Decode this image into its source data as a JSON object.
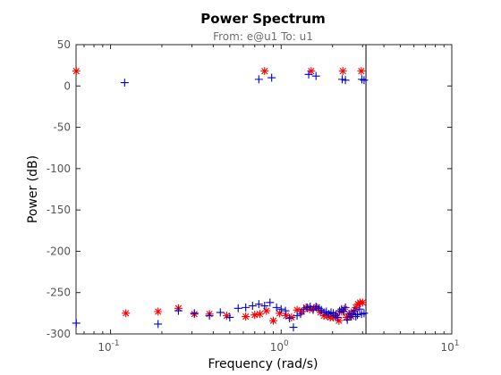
{
  "chart_data": {
    "type": "scatter",
    "title": "Power Spectrum",
    "subtitle": "From: e@u1  To: u1",
    "xlabel": "Frequency  (rad/s)",
    "ylabel": "Power (dB)",
    "xscale": "log",
    "xlim": [
      0.0628,
      10
    ],
    "ylim": [
      -300,
      50
    ],
    "xticks": [
      {
        "value": 0.1,
        "base": "10",
        "exp": "-1"
      },
      {
        "value": 1,
        "base": "10",
        "exp": "0"
      },
      {
        "value": 10,
        "base": "10",
        "exp": "1"
      }
    ],
    "yticks": [
      {
        "value": 50,
        "label": "50"
      },
      {
        "value": 0,
        "label": "0"
      },
      {
        "value": -50,
        "label": "-50"
      },
      {
        "value": -100,
        "label": "-100"
      },
      {
        "value": -150,
        "label": "-150"
      },
      {
        "value": -200,
        "label": "-200"
      },
      {
        "value": -250,
        "label": "-250"
      },
      {
        "value": -300,
        "label": "-300"
      }
    ],
    "grid": false,
    "vline_x": 3.14,
    "series": [
      {
        "marker": "asterisk",
        "color": "#ff0000",
        "points": [
          [
            0.063,
            18
          ],
          [
            0.8,
            18
          ],
          [
            1.5,
            18
          ],
          [
            2.3,
            18
          ],
          [
            2.95,
            18
          ],
          [
            0.123,
            -275
          ],
          [
            0.19,
            -273
          ],
          [
            0.25,
            -269
          ],
          [
            0.31,
            -276
          ],
          [
            0.38,
            -276
          ],
          [
            0.48,
            -278
          ],
          [
            0.62,
            -279
          ],
          [
            0.7,
            -277
          ],
          [
            0.75,
            -276
          ],
          [
            0.82,
            -272
          ],
          [
            0.9,
            -284
          ],
          [
            0.98,
            -275
          ],
          [
            1.07,
            -278
          ],
          [
            1.15,
            -280
          ],
          [
            1.24,
            -271
          ],
          [
            1.32,
            -273
          ],
          [
            1.4,
            -268
          ],
          [
            1.47,
            -270
          ],
          [
            1.55,
            -269
          ],
          [
            1.62,
            -268
          ],
          [
            1.7,
            -274
          ],
          [
            1.78,
            -278
          ],
          [
            1.86,
            -278
          ],
          [
            1.94,
            -280
          ],
          [
            2.02,
            -280
          ],
          [
            2.1,
            -277
          ],
          [
            2.18,
            -284
          ],
          [
            2.26,
            -273
          ],
          [
            2.34,
            -270
          ],
          [
            2.42,
            -280
          ],
          [
            2.5,
            -276
          ],
          [
            2.58,
            -279
          ],
          [
            2.66,
            -273
          ],
          [
            2.74,
            -268
          ],
          [
            2.82,
            -264
          ],
          [
            2.9,
            -262
          ],
          [
            3.0,
            -262
          ]
        ]
      },
      {
        "marker": "plus",
        "color": "#0000cc",
        "points": [
          [
            0.063,
            -287
          ],
          [
            0.121,
            4
          ],
          [
            0.74,
            8
          ],
          [
            0.88,
            10
          ],
          [
            1.45,
            14
          ],
          [
            1.6,
            12
          ],
          [
            2.28,
            8
          ],
          [
            2.38,
            7
          ],
          [
            2.97,
            8
          ],
          [
            3.06,
            7
          ],
          [
            0.19,
            -288
          ],
          [
            0.25,
            -272
          ],
          [
            0.31,
            -275
          ],
          [
            0.38,
            -278
          ],
          [
            0.44,
            -274
          ],
          [
            0.5,
            -280
          ],
          [
            0.56,
            -269
          ],
          [
            0.62,
            -268
          ],
          [
            0.68,
            -266
          ],
          [
            0.74,
            -264
          ],
          [
            0.8,
            -266
          ],
          [
            0.86,
            -262
          ],
          [
            0.94,
            -268
          ],
          [
            1.0,
            -270
          ],
          [
            1.06,
            -272
          ],
          [
            1.12,
            -281
          ],
          [
            1.18,
            -292
          ],
          [
            1.24,
            -278
          ],
          [
            1.3,
            -276
          ],
          [
            1.36,
            -270
          ],
          [
            1.42,
            -268
          ],
          [
            1.48,
            -267
          ],
          [
            1.54,
            -271
          ],
          [
            1.6,
            -267
          ],
          [
            1.66,
            -269
          ],
          [
            1.72,
            -271
          ],
          [
            1.78,
            -274
          ],
          [
            1.84,
            -273
          ],
          [
            1.9,
            -276
          ],
          [
            1.96,
            -274
          ],
          [
            2.02,
            -275
          ],
          [
            2.08,
            -278
          ],
          [
            2.14,
            -280
          ],
          [
            2.2,
            -272
          ],
          [
            2.26,
            -270
          ],
          [
            2.32,
            -273
          ],
          [
            2.38,
            -268
          ],
          [
            2.44,
            -283
          ],
          [
            2.5,
            -276
          ],
          [
            2.56,
            -279
          ],
          [
            2.62,
            -276
          ],
          [
            2.68,
            -272
          ],
          [
            2.74,
            -279
          ],
          [
            2.8,
            -277
          ],
          [
            2.88,
            -270
          ],
          [
            2.96,
            -276
          ],
          [
            3.06,
            -275
          ]
        ]
      }
    ]
  }
}
